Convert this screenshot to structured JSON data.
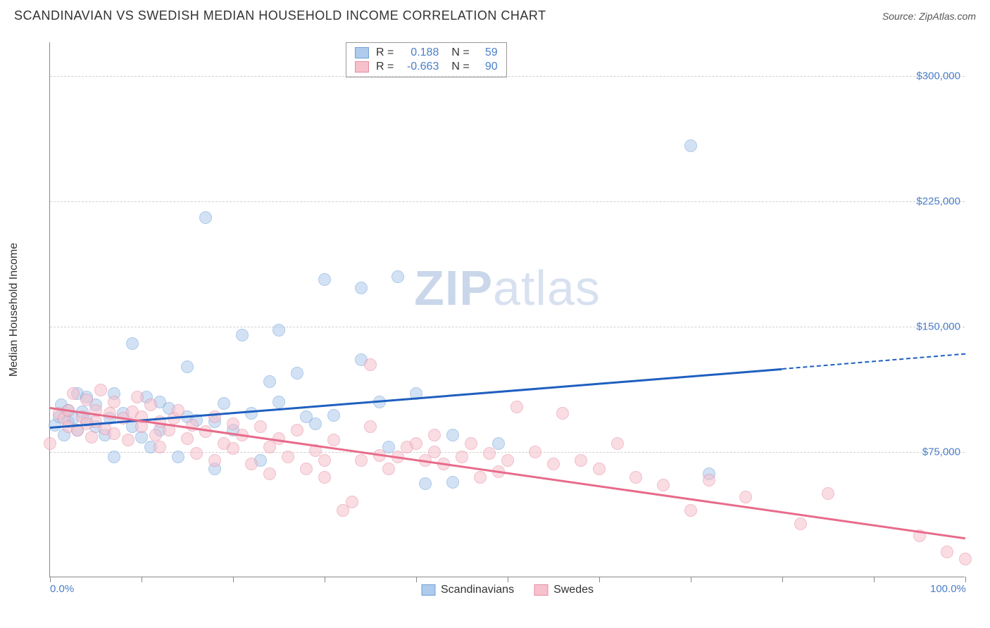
{
  "header": {
    "title": "SCANDINAVIAN VS SWEDISH MEDIAN HOUSEHOLD INCOME CORRELATION CHART",
    "source": "Source: ZipAtlas.com"
  },
  "chart": {
    "type": "scatter",
    "yaxis_title": "Median Household Income",
    "watermark_bold": "ZIP",
    "watermark_light": "atlas",
    "xlim": [
      0,
      100
    ],
    "ylim": [
      0,
      320000
    ],
    "x_ticks_at": [
      0,
      10,
      20,
      30,
      40,
      50,
      60,
      70,
      80,
      90,
      100
    ],
    "x_labels": [
      {
        "at": 0,
        "text": "0.0%"
      },
      {
        "at": 100,
        "text": "100.0%"
      }
    ],
    "y_gridlines": [
      {
        "at": 75000,
        "label": "$75,000"
      },
      {
        "at": 150000,
        "label": "$150,000"
      },
      {
        "at": 225000,
        "label": "$225,000"
      },
      {
        "at": 300000,
        "label": "$300,000"
      }
    ],
    "background_color": "#ffffff",
    "grid_color": "#d0d0d0",
    "axis_color": "#888888",
    "label_color": "#4a7ec9",
    "label_fontsize": 15,
    "title_fontsize": 18,
    "point_radius": 9,
    "point_opacity": 0.55,
    "series": [
      {
        "name": "Scandinavians",
        "fill": "#aecbec",
        "stroke": "#6f9fd8",
        "trend_color": "#1f5fbf",
        "trend_width": 3,
        "trend": {
          "x1": 0,
          "y1": 90000,
          "x2": 80,
          "y2": 125000,
          "dash_to_x": 100,
          "dash_to_y": 134000
        },
        "stats": {
          "R": "0.188",
          "N": "59"
        },
        "points": [
          [
            0.5,
            91000
          ],
          [
            1,
            96000
          ],
          [
            1.2,
            103000
          ],
          [
            1.5,
            85000
          ],
          [
            2,
            100000
          ],
          [
            2,
            93000
          ],
          [
            2.5,
            95000
          ],
          [
            3,
            110000
          ],
          [
            3,
            88000
          ],
          [
            3.5,
            99000
          ],
          [
            4,
            94000
          ],
          [
            4,
            108000
          ],
          [
            5,
            90000
          ],
          [
            5,
            103000
          ],
          [
            6,
            85000
          ],
          [
            6.5,
            95000
          ],
          [
            7,
            110000
          ],
          [
            7,
            72000
          ],
          [
            8,
            98000
          ],
          [
            9,
            140000
          ],
          [
            9,
            90000
          ],
          [
            10,
            84000
          ],
          [
            10.5,
            108000
          ],
          [
            11,
            78000
          ],
          [
            12,
            88000
          ],
          [
            12,
            105000
          ],
          [
            13,
            101000
          ],
          [
            14,
            72000
          ],
          [
            15,
            96000
          ],
          [
            15,
            126000
          ],
          [
            16,
            94000
          ],
          [
            17,
            215000
          ],
          [
            18,
            93000
          ],
          [
            18,
            65000
          ],
          [
            19,
            104000
          ],
          [
            20,
            88000
          ],
          [
            21,
            145000
          ],
          [
            22,
            98000
          ],
          [
            23,
            70000
          ],
          [
            24,
            117000
          ],
          [
            25,
            105000
          ],
          [
            25,
            148000
          ],
          [
            27,
            122000
          ],
          [
            28,
            96000
          ],
          [
            29,
            92000
          ],
          [
            30,
            178000
          ],
          [
            31,
            97000
          ],
          [
            34,
            173000
          ],
          [
            34,
            130000
          ],
          [
            36,
            105000
          ],
          [
            37,
            78000
          ],
          [
            38,
            180000
          ],
          [
            40,
            110000
          ],
          [
            41,
            56000
          ],
          [
            44,
            85000
          ],
          [
            44,
            57000
          ],
          [
            49,
            80000
          ],
          [
            70,
            258000
          ],
          [
            72,
            62000
          ]
        ]
      },
      {
        "name": "Swedes",
        "fill": "#f6c1cd",
        "stroke": "#e58ca1",
        "trend_color": "#e76b8a",
        "trend_width": 3,
        "trend": {
          "x1": 0,
          "y1": 102000,
          "x2": 100,
          "y2": 24000
        },
        "stats": {
          "R": "-0.663",
          "N": "90"
        },
        "points": [
          [
            0,
            80000
          ],
          [
            1,
            98000
          ],
          [
            1.5,
            95000
          ],
          [
            2,
            90000
          ],
          [
            2,
            100000
          ],
          [
            2.5,
            110000
          ],
          [
            3,
            88000
          ],
          [
            3.5,
            96000
          ],
          [
            4,
            92000
          ],
          [
            4,
            106000
          ],
          [
            4.5,
            84000
          ],
          [
            5,
            100000
          ],
          [
            5,
            93000
          ],
          [
            5.5,
            112000
          ],
          [
            6,
            89000
          ],
          [
            6.5,
            98000
          ],
          [
            7,
            105000
          ],
          [
            7,
            86000
          ],
          [
            8,
            95000
          ],
          [
            8.5,
            82000
          ],
          [
            9,
            99000
          ],
          [
            9.5,
            108000
          ],
          [
            10,
            90000
          ],
          [
            10,
            96000
          ],
          [
            11,
            103000
          ],
          [
            11.5,
            85000
          ],
          [
            12,
            93000
          ],
          [
            12,
            78000
          ],
          [
            13,
            88000
          ],
          [
            13.5,
            95000
          ],
          [
            14,
            100000
          ],
          [
            15,
            83000
          ],
          [
            15.5,
            91000
          ],
          [
            16,
            74000
          ],
          [
            17,
            87000
          ],
          [
            18,
            96000
          ],
          [
            18,
            70000
          ],
          [
            19,
            80000
          ],
          [
            20,
            92000
          ],
          [
            20,
            77000
          ],
          [
            21,
            85000
          ],
          [
            22,
            68000
          ],
          [
            23,
            90000
          ],
          [
            24,
            78000
          ],
          [
            24,
            62000
          ],
          [
            25,
            83000
          ],
          [
            26,
            72000
          ],
          [
            27,
            88000
          ],
          [
            28,
            65000
          ],
          [
            29,
            76000
          ],
          [
            30,
            70000
          ],
          [
            30,
            60000
          ],
          [
            31,
            82000
          ],
          [
            32,
            40000
          ],
          [
            33,
            45000
          ],
          [
            34,
            70000
          ],
          [
            35,
            127000
          ],
          [
            35,
            90000
          ],
          [
            36,
            73000
          ],
          [
            37,
            65000
          ],
          [
            38,
            72000
          ],
          [
            39,
            78000
          ],
          [
            40,
            80000
          ],
          [
            41,
            70000
          ],
          [
            42,
            75000
          ],
          [
            42,
            85000
          ],
          [
            43,
            68000
          ],
          [
            45,
            72000
          ],
          [
            46,
            80000
          ],
          [
            47,
            60000
          ],
          [
            48,
            74000
          ],
          [
            49,
            63000
          ],
          [
            50,
            70000
          ],
          [
            51,
            102000
          ],
          [
            53,
            75000
          ],
          [
            55,
            68000
          ],
          [
            56,
            98000
          ],
          [
            58,
            70000
          ],
          [
            60,
            65000
          ],
          [
            62,
            80000
          ],
          [
            64,
            60000
          ],
          [
            67,
            55000
          ],
          [
            70,
            40000
          ],
          [
            72,
            58000
          ],
          [
            76,
            48000
          ],
          [
            82,
            32000
          ],
          [
            85,
            50000
          ],
          [
            95,
            25000
          ],
          [
            98,
            15000
          ],
          [
            100,
            11000
          ]
        ]
      }
    ],
    "bottom_legend": [
      {
        "label": "Scandinavians",
        "fill": "#aecbec",
        "stroke": "#6f9fd8"
      },
      {
        "label": "Swedes",
        "fill": "#f6c1cd",
        "stroke": "#e58ca1"
      }
    ],
    "stats_box_labels": {
      "R": "R =",
      "N": "N ="
    }
  }
}
